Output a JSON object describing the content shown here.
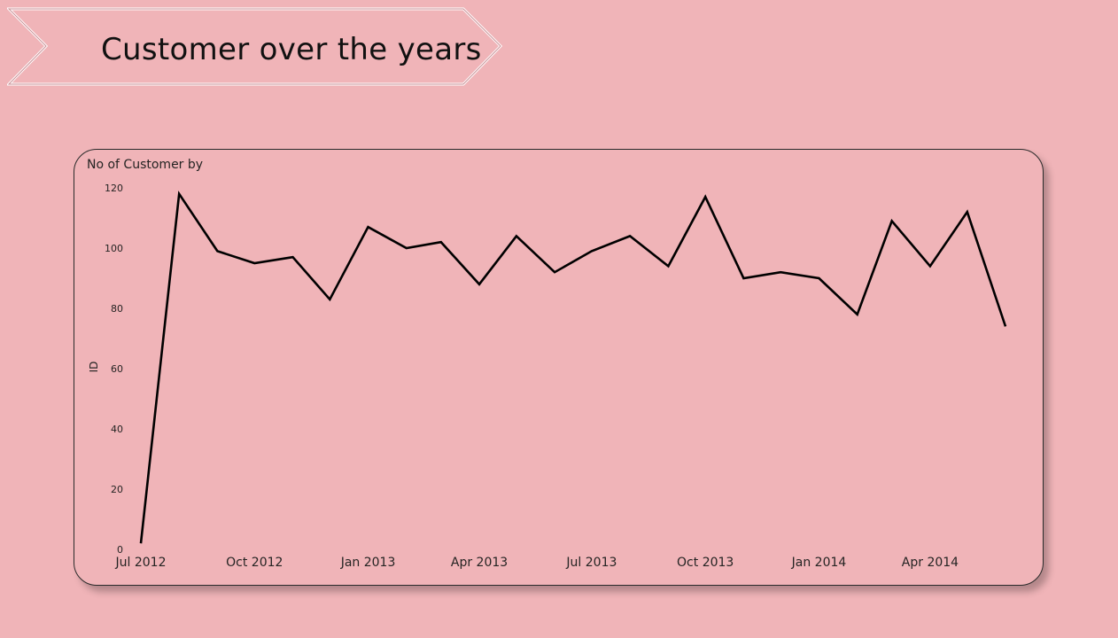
{
  "page": {
    "banner_title": "Customer over the years"
  },
  "chart_data": {
    "type": "line",
    "title": "No of Customer by",
    "xlabel": "",
    "ylabel": "ID",
    "ylim": [
      0,
      120
    ],
    "y_ticks": [
      0,
      20,
      40,
      60,
      80,
      100,
      120
    ],
    "x_ticks": [
      "2012-07-01",
      "2012-10-01",
      "2013-01-01",
      "2013-04-01",
      "2013-07-01",
      "2013-10-01",
      "2014-01-01",
      "2014-04-01"
    ],
    "x_tick_labels": [
      "Jul 2012",
      "Oct 2012",
      "Jan 2013",
      "Apr 2013",
      "Jul 2013",
      "Oct 2013",
      "Jan 2014",
      "Apr 2014"
    ],
    "grid": false,
    "legend": "none",
    "line_color": "#000000",
    "series": [
      {
        "x": [
          "2012-07-01",
          "2012-08-01",
          "2012-09-01",
          "2012-10-01",
          "2012-11-01",
          "2012-12-01",
          "2013-01-01",
          "2013-02-01",
          "2013-03-01",
          "2013-04-01",
          "2013-05-01",
          "2013-06-01",
          "2013-07-01",
          "2013-08-01",
          "2013-09-01",
          "2013-10-01",
          "2013-11-01",
          "2013-12-01",
          "2014-01-01",
          "2014-02-01",
          "2014-03-01",
          "2014-04-01",
          "2014-05-01",
          "2014-06-01"
        ],
        "values": [
          2,
          118,
          99,
          95,
          97,
          83,
          107,
          100,
          102,
          88,
          104,
          92,
          99,
          104,
          94,
          117,
          90,
          92,
          90,
          78,
          109,
          94,
          112,
          74
        ]
      }
    ]
  }
}
